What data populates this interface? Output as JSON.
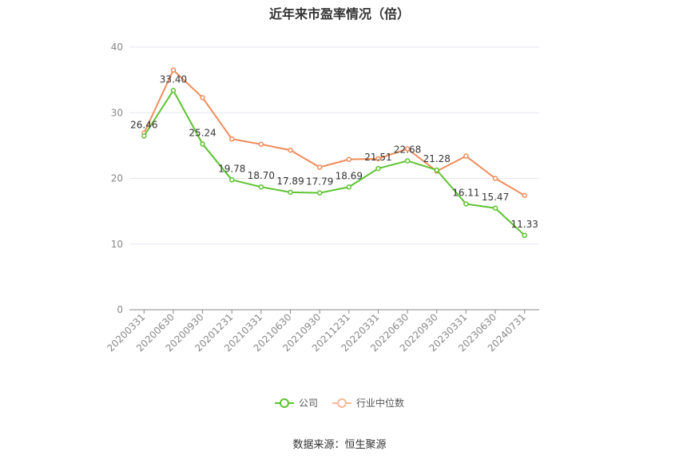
{
  "chart_data": {
    "type": "line",
    "title": "近年来市盈率情况（倍）",
    "categories": [
      "20200331",
      "20200630",
      "20200930",
      "20201231",
      "20210331",
      "20210630",
      "20210930",
      "20211231",
      "20220331",
      "20220630",
      "20220930",
      "20230331",
      "20230630",
      "20240731"
    ],
    "series": [
      {
        "name": "公司",
        "color": "#5cc330",
        "values": [
          26.46,
          33.4,
          25.24,
          19.78,
          18.7,
          17.89,
          17.79,
          18.69,
          21.51,
          22.68,
          21.28,
          16.11,
          15.47,
          11.33
        ],
        "value_labels": [
          "26.46",
          "33.40",
          "25.24",
          "19.78",
          "18.70",
          "17.89",
          "17.79",
          "18.69",
          "21.51",
          "22.68",
          "21.28",
          "16.11",
          "15.47",
          "11.33"
        ]
      },
      {
        "name": "行业中位数",
        "color": "#f08c5a",
        "values": [
          26.9,
          36.5,
          32.3,
          26.0,
          25.2,
          24.3,
          21.7,
          22.9,
          23.0,
          24.5,
          21.1,
          23.4,
          20.0,
          17.4
        ]
      }
    ],
    "yticks": [
      "0",
      "10",
      "20",
      "30",
      "40"
    ],
    "ylim": [
      0,
      40
    ],
    "grid": true,
    "legend_position": "bottom"
  },
  "source": "数据来源：恒生聚源"
}
